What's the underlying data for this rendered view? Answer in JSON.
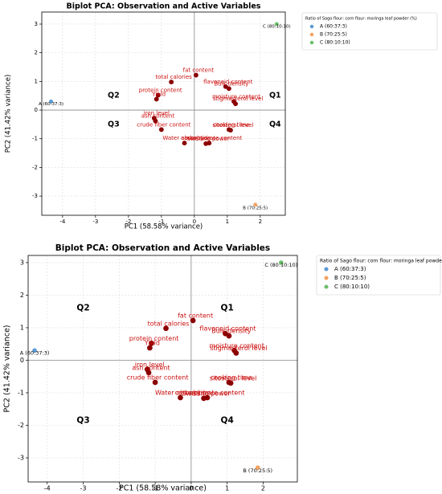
{
  "chart_data": [
    {
      "type": "scatter",
      "title": "Biplot PCA: Observation and Active Variables",
      "x_label": "PC1 (58.58% variance)",
      "y_label": "PC2 (41.42% variance)",
      "xlim": [
        -4.63,
        2.76
      ],
      "ylim": [
        -3.67,
        3.42
      ],
      "xticks": [
        -4,
        -3,
        -2,
        -1,
        0,
        1,
        2
      ],
      "yticks": [
        -3,
        -2,
        -1,
        0,
        1,
        2,
        3
      ],
      "grid": true,
      "legend": "upper right outside",
      "legend_title": "Ratio of Sago flour: corn flour: moringa leaf powder (%)",
      "series": [
        {
          "name": "A (60:37:3)",
          "color": "#5b9bd5",
          "x": [
            -4.35
          ],
          "values": [
            0.3
          ]
        },
        {
          "name": "B (70:25:5)",
          "color": "#f4a261",
          "x": [
            1.85
          ],
          "values": [
            -3.3
          ]
        },
        {
          "name": "C (80:10:10)",
          "color": "#6cbf6c",
          "x": [
            2.5
          ],
          "values": [
            3.0
          ]
        }
      ],
      "variables": {
        "color": "#8b0000",
        "label_color": "#cc1111",
        "names": [
          "fat content",
          "total calories",
          "protein content",
          "Yield",
          "flavonoid content",
          "Bulk density",
          "moisture content",
          "stigmasterol level",
          "iron level",
          "ash content",
          "crude fiber content",
          "Water absorption",
          "Swelling power",
          "carbohydrate content",
          "cooking time",
          "sitosterol level"
        ],
        "x": [
          0.05,
          -0.7,
          -1.1,
          -1.15,
          0.95,
          1.05,
          1.2,
          1.25,
          -1.22,
          -1.18,
          -1.0,
          -0.3,
          0.35,
          0.45,
          1.05,
          1.1
        ],
        "values": [
          1.22,
          0.98,
          0.52,
          0.38,
          0.82,
          0.75,
          0.3,
          0.22,
          -0.28,
          -0.38,
          -0.68,
          -1.15,
          -1.17,
          -1.15,
          -0.68,
          -0.7
        ]
      },
      "quadrants": [
        "Q1",
        "Q2",
        "Q3",
        "Q4"
      ]
    },
    {
      "type": "scatter",
      "title": "Biplot PCA: Observation and Active Variables",
      "x_label": "PC1 (58.58% variance)",
      "y_label": "PC2 (41.42% variance)",
      "xlim": [
        -4.53,
        2.95
      ],
      "ylim": [
        -3.74,
        3.22
      ],
      "xticks": [
        -4,
        -3,
        -2,
        -1,
        0,
        1,
        2
      ],
      "yticks": [
        -3,
        -2,
        -1,
        0,
        1,
        2,
        3
      ],
      "grid": true,
      "legend": "upper right outside",
      "legend_title": "Ratio of Sago flour: corn flour: moringa leaf powder (%)",
      "series": [
        {
          "name": "A (60:37:3)",
          "color": "#5b9bd5",
          "x": [
            -4.35
          ],
          "values": [
            0.3
          ]
        },
        {
          "name": "B (70:25:5)",
          "color": "#f4a261",
          "x": [
            1.85
          ],
          "values": [
            -3.3
          ]
        },
        {
          "name": "C (80:10:10)",
          "color": "#6cbf6c",
          "x": [
            2.5
          ],
          "values": [
            3.0
          ]
        }
      ],
      "variables": {
        "color": "#8b0000",
        "label_color": "#cc1111",
        "names": [
          "fat content",
          "total calories",
          "protein content",
          "Yield",
          "flavonoid content",
          "Bulk density",
          "moisture content",
          "stigmasterol level",
          "iron level",
          "ash content",
          "crude fiber content",
          "Water absorption",
          "Swelling power",
          "carbohydrate content",
          "cooking time",
          "sitosterol level"
        ],
        "x": [
          0.05,
          -0.7,
          -1.1,
          -1.15,
          0.95,
          1.05,
          1.2,
          1.25,
          -1.22,
          -1.18,
          -1.0,
          -0.3,
          0.35,
          0.45,
          1.05,
          1.1
        ],
        "values": [
          1.22,
          0.98,
          0.52,
          0.38,
          0.82,
          0.75,
          0.3,
          0.22,
          -0.28,
          -0.38,
          -0.68,
          -1.15,
          -1.17,
          -1.15,
          -0.68,
          -0.7
        ]
      },
      "quadrants": [
        "Q1",
        "Q2",
        "Q3",
        "Q4"
      ]
    }
  ]
}
